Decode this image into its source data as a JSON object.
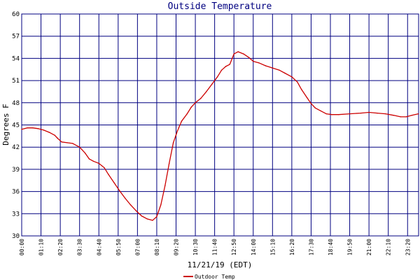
{
  "chart_data": {
    "type": "line",
    "title": "Outside Temperature",
    "xlabel": "11/21/19 (EDT)",
    "ylabel": "Degrees F",
    "ylim": [
      30,
      60
    ],
    "y_ticks": [
      "30",
      "33",
      "36",
      "39",
      "42",
      "45",
      "48",
      "51",
      "54",
      "57",
      "60"
    ],
    "x_ticks": [
      "00:00",
      "01:10",
      "02:20",
      "03:30",
      "04:40",
      "05:50",
      "07:00",
      "08:10",
      "09:20",
      "10:30",
      "11:40",
      "12:50",
      "14:00",
      "15:10",
      "16:20",
      "17:30",
      "18:40",
      "19:50",
      "21:00",
      "22:10",
      "23:20"
    ],
    "grid": true,
    "legend_position": "bottom-left",
    "series": [
      {
        "name": "Outdoor Temp",
        "color": "#cc0000",
        "points": [
          [
            "00:00",
            44.4
          ],
          [
            "00:20",
            44.6
          ],
          [
            "00:40",
            44.6
          ],
          [
            "01:00",
            44.5
          ],
          [
            "01:20",
            44.3
          ],
          [
            "01:40",
            44.0
          ],
          [
            "02:00",
            43.6
          ],
          [
            "02:10",
            43.2
          ],
          [
            "02:25",
            42.7
          ],
          [
            "02:45",
            42.6
          ],
          [
            "03:05",
            42.5
          ],
          [
            "03:30",
            42.0
          ],
          [
            "03:50",
            41.2
          ],
          [
            "04:05",
            40.4
          ],
          [
            "04:20",
            40.1
          ],
          [
            "04:40",
            39.8
          ],
          [
            "05:00",
            39.2
          ],
          [
            "05:15",
            38.3
          ],
          [
            "05:35",
            37.2
          ],
          [
            "05:55",
            36.1
          ],
          [
            "06:15",
            35.1
          ],
          [
            "06:35",
            34.2
          ],
          [
            "06:55",
            33.4
          ],
          [
            "07:15",
            32.7
          ],
          [
            "07:35",
            32.3
          ],
          [
            "07:55",
            32.1
          ],
          [
            "08:10",
            32.6
          ],
          [
            "08:25",
            34.2
          ],
          [
            "08:40",
            36.8
          ],
          [
            "08:55",
            39.8
          ],
          [
            "09:10",
            42.6
          ],
          [
            "09:25",
            44.2
          ],
          [
            "09:40",
            45.5
          ],
          [
            "10:00",
            46.5
          ],
          [
            "10:15",
            47.4
          ],
          [
            "10:30",
            48.0
          ],
          [
            "10:50",
            48.6
          ],
          [
            "11:10",
            49.5
          ],
          [
            "11:30",
            50.5
          ],
          [
            "11:50",
            51.5
          ],
          [
            "12:05",
            52.4
          ],
          [
            "12:20",
            52.9
          ],
          [
            "12:35",
            53.2
          ],
          [
            "12:50",
            54.6
          ],
          [
            "13:05",
            54.9
          ],
          [
            "13:25",
            54.6
          ],
          [
            "13:45",
            54.1
          ],
          [
            "14:00",
            53.6
          ],
          [
            "14:20",
            53.4
          ],
          [
            "14:45",
            53.0
          ],
          [
            "15:10",
            52.7
          ],
          [
            "15:35",
            52.4
          ],
          [
            "15:55",
            52.0
          ],
          [
            "16:20",
            51.5
          ],
          [
            "16:40",
            50.8
          ],
          [
            "16:55",
            49.8
          ],
          [
            "17:15",
            48.7
          ],
          [
            "17:30",
            47.9
          ],
          [
            "17:45",
            47.3
          ],
          [
            "18:05",
            46.9
          ],
          [
            "18:25",
            46.5
          ],
          [
            "18:45",
            46.4
          ],
          [
            "19:10",
            46.4
          ],
          [
            "19:50",
            46.5
          ],
          [
            "20:30",
            46.6
          ],
          [
            "21:00",
            46.7
          ],
          [
            "21:30",
            46.6
          ],
          [
            "22:00",
            46.5
          ],
          [
            "22:30",
            46.3
          ],
          [
            "22:55",
            46.1
          ],
          [
            "23:15",
            46.1
          ],
          [
            "23:35",
            46.3
          ],
          [
            "23:59",
            46.5
          ]
        ]
      }
    ]
  }
}
